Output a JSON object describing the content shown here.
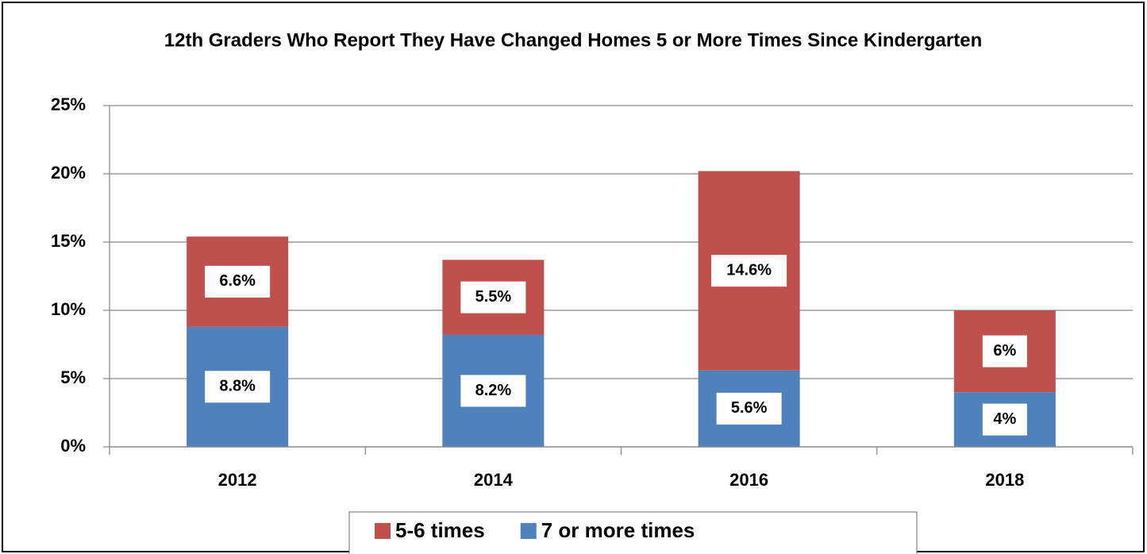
{
  "chart_data": {
    "type": "stacked_bar",
    "title": "12th Graders Who Report They Have Changed Homes 5 or More Times Since Kindergarten",
    "categories": [
      "2012",
      "2014",
      "2016",
      "2018"
    ],
    "series": [
      {
        "name": "7 or more times",
        "color": "#4f81bd",
        "values": [
          8.8,
          8.2,
          5.6,
          4
        ],
        "value_labels": [
          "8.8%",
          "8.2%",
          "5.6%",
          "4%"
        ]
      },
      {
        "name": "5-6 times",
        "color": "#c0504d",
        "values": [
          6.6,
          5.5,
          14.6,
          6
        ],
        "value_labels": [
          "6.6%",
          "5.5%",
          "14.6%",
          "6%"
        ]
      }
    ],
    "ylim": [
      0,
      25
    ],
    "yticks": [
      {
        "value": 0,
        "label": "0%"
      },
      {
        "value": 5,
        "label": "5%"
      },
      {
        "value": 10,
        "label": "10%"
      },
      {
        "value": 15,
        "label": "15%"
      },
      {
        "value": 20,
        "label": "20%"
      },
      {
        "value": 25,
        "label": "25%"
      }
    ],
    "grid": true,
    "legend": "bottom"
  }
}
